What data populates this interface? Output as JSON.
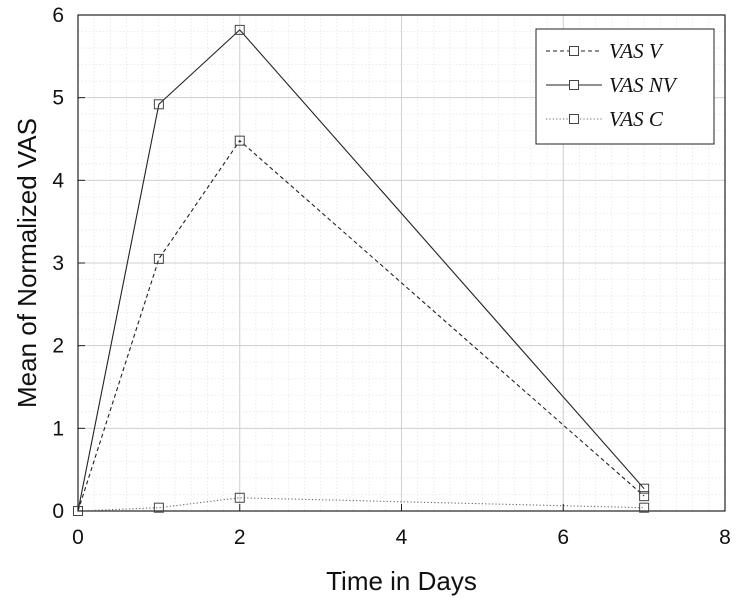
{
  "chart_data": {
    "type": "line",
    "xlabel": "Time in Days",
    "ylabel": "Mean of Normalized VAS",
    "xlim": [
      0,
      8
    ],
    "ylim": [
      0,
      6
    ],
    "xticks": [
      "0",
      "2",
      "4",
      "6",
      "8"
    ],
    "yticks": [
      "0",
      "1",
      "2",
      "3",
      "4",
      "5",
      "6"
    ],
    "grid": true,
    "minor_grid": true,
    "legend_position": "top-right",
    "series": [
      {
        "name": "VAS V",
        "line_style": "dashed",
        "marker": "square",
        "x": [
          0,
          1,
          2,
          7
        ],
        "y": [
          0.0,
          3.05,
          4.48,
          0.18
        ]
      },
      {
        "name": "VAS NV",
        "line_style": "solid",
        "marker": "square",
        "x": [
          0,
          1,
          2,
          7
        ],
        "y": [
          0.0,
          4.92,
          5.82,
          0.27
        ]
      },
      {
        "name": "VAS C",
        "line_style": "dotted",
        "marker": "square",
        "x": [
          0,
          1,
          2,
          7
        ],
        "y": [
          0.0,
          0.04,
          0.16,
          0.04
        ]
      }
    ]
  }
}
